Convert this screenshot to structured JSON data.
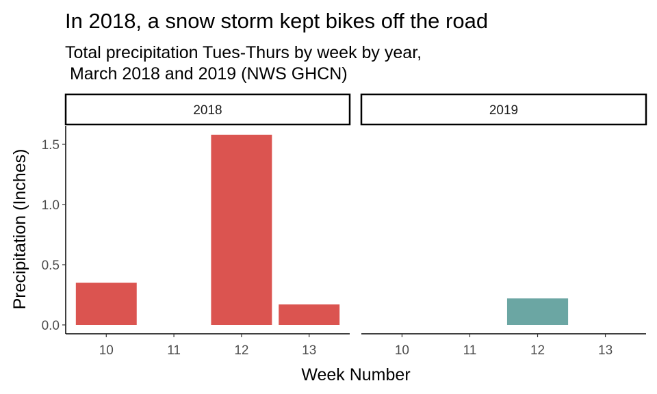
{
  "chart_data": {
    "type": "bar",
    "title": "In 2018, a snow storm kept bikes off the road",
    "subtitle_lines": [
      "Total precipitation Tues-Thurs by week by year,",
      " March 2018 and 2019 (NWS GHCN)"
    ],
    "xlabel": "Week Number",
    "ylabel": "Precipitation (Inches)",
    "categories": [
      "10",
      "11",
      "12",
      "13"
    ],
    "ylim": [
      0,
      1.6
    ],
    "yticks": [
      "0.0",
      "0.5",
      "1.0",
      "1.5"
    ],
    "grid": false,
    "legend": "none",
    "panels": [
      {
        "name": "2018",
        "color": "#DB5450",
        "values": [
          0.35,
          0,
          1.58,
          0.17
        ]
      },
      {
        "name": "2019",
        "color": "#6BA6A3",
        "values": [
          0,
          0,
          0.22,
          0
        ]
      }
    ]
  }
}
